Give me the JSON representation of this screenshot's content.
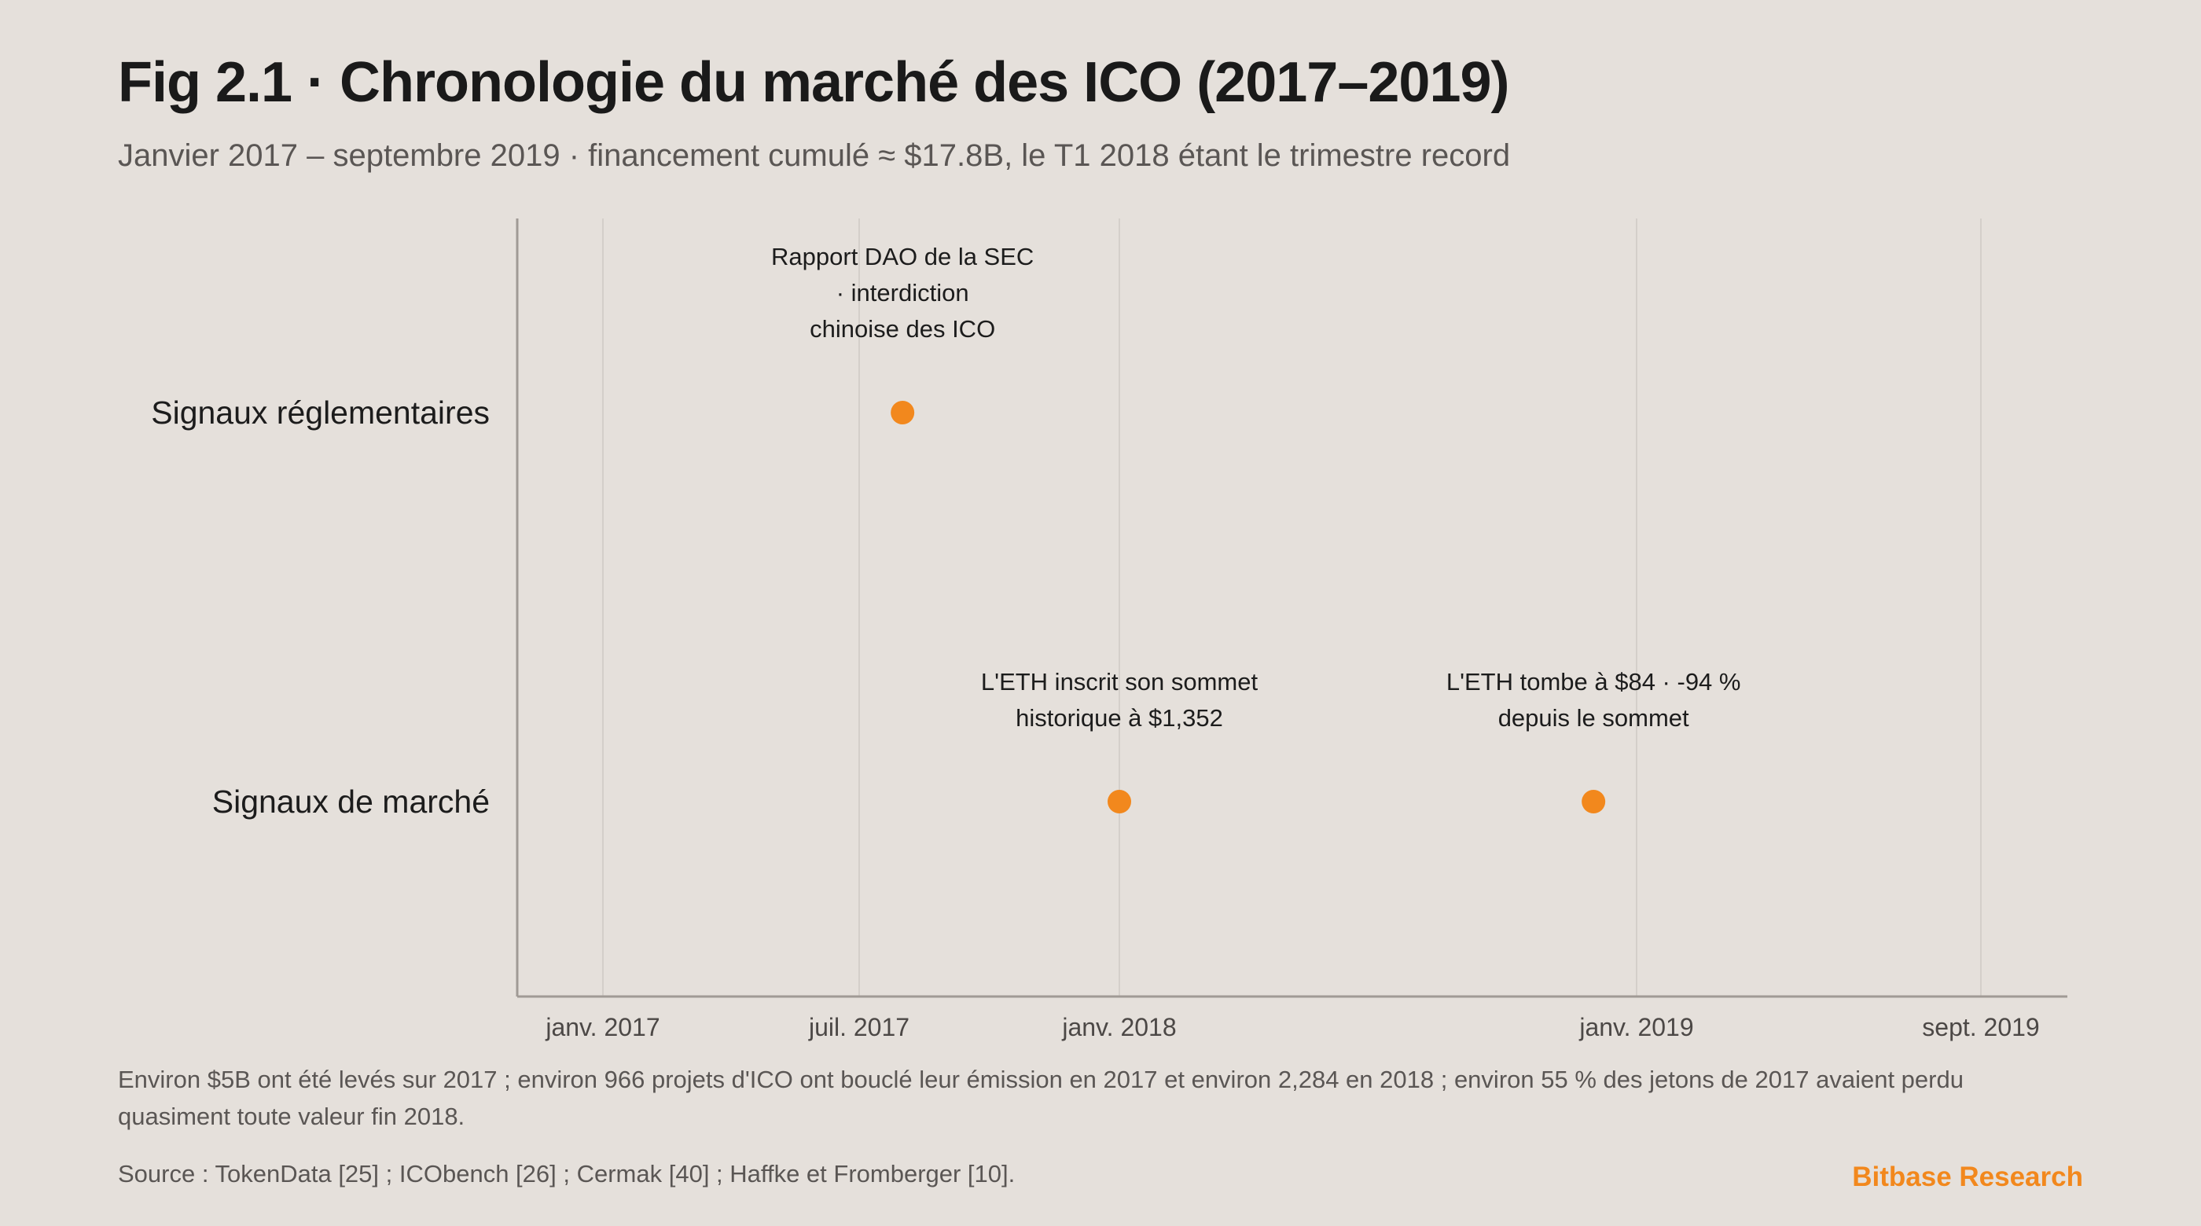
{
  "header": {
    "title": "Fig 2.1 · Chronologie du marché des ICO (2017–2019)",
    "subtitle": "Janvier 2017 – septembre 2019 · financement cumulé ≈ $17.8B, le T1 2018 étant le trimestre record"
  },
  "chart_data": {
    "type": "scatter",
    "subtype": "timeline",
    "x_axis": {
      "type": "date",
      "range": [
        "2016-11",
        "2019-10"
      ],
      "ticks": [
        {
          "date": "2017-01-01",
          "label": "janv. 2017"
        },
        {
          "date": "2017-07-01",
          "label": "juil. 2017"
        },
        {
          "date": "2018-01-01",
          "label": "janv. 2018"
        },
        {
          "date": "2019-01-01",
          "label": "janv. 2019"
        },
        {
          "date": "2019-09-01",
          "label": "sept. 2019"
        }
      ],
      "grid": true
    },
    "lanes": [
      "Signaux réglementaires",
      "Signaux de marché"
    ],
    "events": [
      {
        "lane": "Signaux réglementaires",
        "date": "2017-08",
        "label": "Rapport DAO de la SEC · interdiction chinoise des ICO"
      },
      {
        "lane": "Signaux de marché",
        "date": "2018-01",
        "label": "L'ETH inscrit son sommet historique à $1,352"
      },
      {
        "lane": "Signaux de marché",
        "date": "2018-12",
        "label": "L'ETH tombe à $84 · -94 % depuis le sommet"
      }
    ],
    "marker_color": "#f2881d",
    "grid_color": "#d4cfca",
    "axis_color": "#a09a95"
  },
  "footer": {
    "note": "Environ $5B ont été levés sur 2017 ; environ 966 projets d'ICO ont bouclé leur émission en 2017 et environ 2,284 en 2018 ; environ 55 % des jetons de 2017 avaient perdu quasiment toute valeur fin 2018.",
    "source": "Source : TokenData [25] ; ICObench [26] ; Cermak [40] ; Haffke et Fromberger [10].",
    "brand": "Bitbase Research"
  }
}
